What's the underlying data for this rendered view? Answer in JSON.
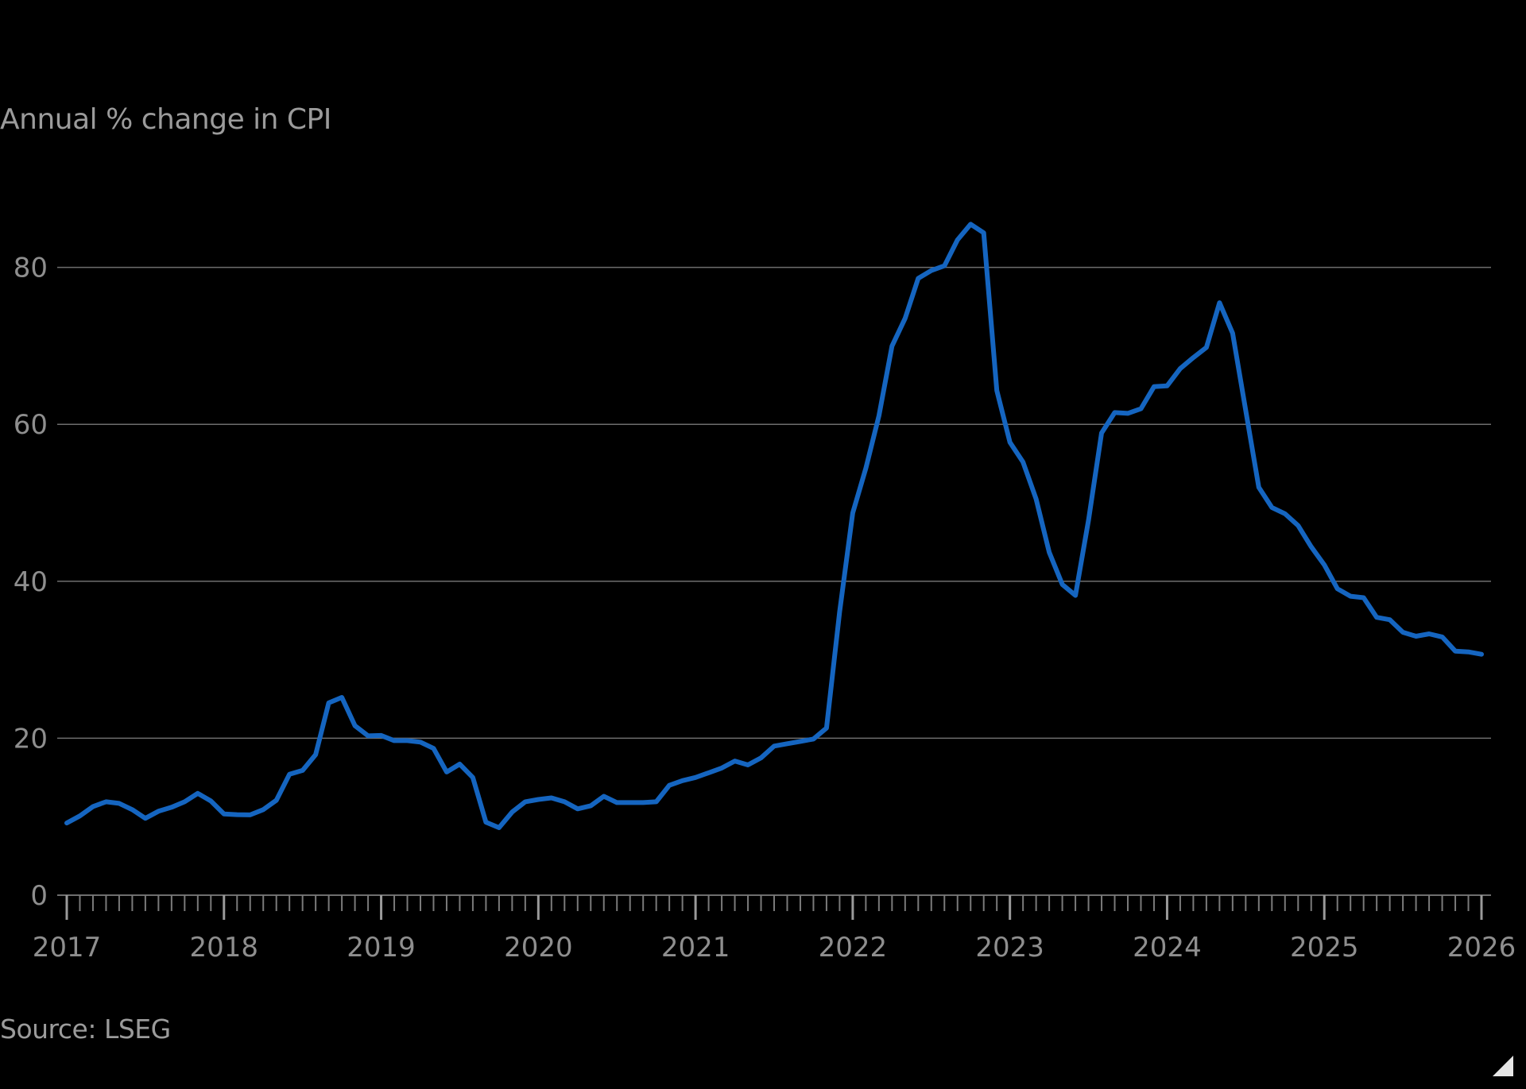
{
  "chart_data": {
    "type": "line",
    "ylabel": "Annual % change in CPI",
    "source": "Source: LSEG",
    "ylim": [
      0,
      90
    ],
    "yticks": [
      0,
      20,
      40,
      60,
      80
    ],
    "xlim": [
      "2017-01",
      "2026-01"
    ],
    "xticks": [
      "2017",
      "2018",
      "2019",
      "2020",
      "2021",
      "2022",
      "2023",
      "2024",
      "2025",
      "2026"
    ],
    "grid": true,
    "colors": {
      "line": "#1565c0",
      "grid": "#6e6e6e",
      "text": "#8e8e8e"
    },
    "series": [
      {
        "x": [
          "2017-01",
          "2017-02",
          "2017-03",
          "2017-04",
          "2017-05",
          "2017-06",
          "2017-07",
          "2017-08",
          "2017-09",
          "2017-10",
          "2017-11",
          "2017-12",
          "2018-01",
          "2018-02",
          "2018-03",
          "2018-04",
          "2018-05",
          "2018-06",
          "2018-07",
          "2018-08",
          "2018-09",
          "2018-10",
          "2018-11",
          "2018-12",
          "2019-01",
          "2019-02",
          "2019-03",
          "2019-04",
          "2019-05",
          "2019-06",
          "2019-07",
          "2019-08",
          "2019-09",
          "2019-10",
          "2019-11",
          "2019-12",
          "2020-01",
          "2020-02",
          "2020-03",
          "2020-04",
          "2020-05",
          "2020-06",
          "2020-07",
          "2020-08",
          "2020-09",
          "2020-10",
          "2020-11",
          "2020-12",
          "2021-01",
          "2021-02",
          "2021-03",
          "2021-04",
          "2021-05",
          "2021-06",
          "2021-07",
          "2021-08",
          "2021-09",
          "2021-10",
          "2021-11",
          "2021-12",
          "2022-01",
          "2022-02",
          "2022-03",
          "2022-04",
          "2022-05",
          "2022-06",
          "2022-07",
          "2022-08",
          "2022-09",
          "2022-10",
          "2022-11",
          "2022-12",
          "2023-01",
          "2023-02",
          "2023-03",
          "2023-04",
          "2023-05",
          "2023-06",
          "2023-07",
          "2023-08",
          "2023-09",
          "2023-10",
          "2023-11",
          "2023-12",
          "2024-01",
          "2024-02",
          "2024-03",
          "2024-04",
          "2024-05",
          "2024-06",
          "2024-07",
          "2024-08",
          "2024-09",
          "2024-10",
          "2024-11",
          "2024-12",
          "2025-01",
          "2025-02",
          "2025-03",
          "2025-04",
          "2025-05",
          "2025-06",
          "2025-07",
          "2025-08",
          "2025-09",
          "2025-10",
          "2025-11",
          "2025-12",
          "2026-01"
        ],
        "values": [
          9.2,
          10.1,
          11.3,
          11.9,
          11.7,
          10.9,
          9.8,
          10.7,
          11.2,
          11.9,
          12.98,
          12.0,
          10.35,
          10.26,
          10.23,
          10.9,
          12.1,
          15.4,
          15.9,
          17.9,
          24.5,
          25.2,
          21.6,
          20.3,
          20.35,
          19.7,
          19.7,
          19.5,
          18.7,
          15.7,
          16.7,
          15.0,
          9.3,
          8.6,
          10.6,
          11.9,
          12.2,
          12.4,
          11.9,
          11.0,
          11.4,
          12.6,
          11.8,
          11.8,
          11.8,
          11.9,
          14.0,
          14.6,
          15.0,
          15.6,
          16.2,
          17.1,
          16.6,
          17.5,
          19.0,
          19.3,
          19.6,
          19.9,
          21.3,
          36.1,
          48.7,
          54.4,
          61.1,
          69.97,
          73.5,
          78.6,
          79.6,
          80.2,
          83.5,
          85.5,
          84.4,
          64.3,
          57.7,
          55.2,
          50.5,
          43.7,
          39.6,
          38.2,
          47.8,
          58.9,
          61.5,
          61.4,
          61.98,
          64.8,
          64.9,
          67.1,
          68.5,
          69.8,
          75.5,
          71.6,
          61.8,
          51.97,
          49.4,
          48.6,
          47.1,
          44.4,
          42.1,
          39.05,
          38.1,
          37.9,
          35.4,
          35.1,
          33.5,
          33.0,
          33.3,
          32.9,
          31.1,
          31.0,
          30.7
        ]
      }
    ]
  }
}
